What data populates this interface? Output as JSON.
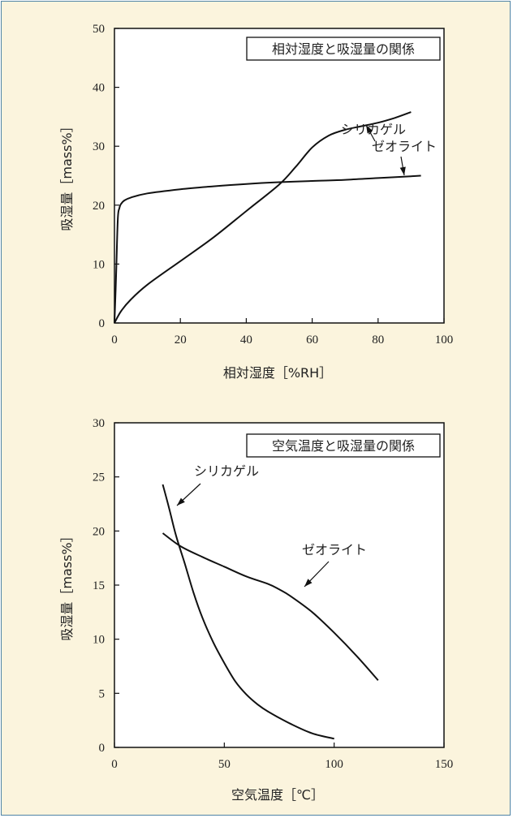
{
  "chart_data": [
    {
      "type": "line",
      "title": "相対湿度と吸湿量の関係",
      "xlabel": "相対湿度［%RH］",
      "ylabel": "吸湿量［mass%］",
      "xlim": [
        0,
        100
      ],
      "ylim": [
        0,
        50
      ],
      "xticks": [
        0,
        20,
        40,
        60,
        80,
        100
      ],
      "yticks": [
        0,
        10,
        20,
        30,
        40,
        50
      ],
      "grid": false,
      "series": [
        {
          "name": "シリカゲル",
          "x": [
            0,
            2,
            5,
            10,
            20,
            30,
            40,
            50,
            55,
            60,
            65,
            70,
            75,
            80,
            85,
            90
          ],
          "y": [
            0,
            2,
            4,
            6.5,
            10.5,
            14.5,
            19,
            23.5,
            26.5,
            29.8,
            31.8,
            32.8,
            33.4,
            34,
            34.8,
            35.8
          ]
        },
        {
          "name": "ゼオライト",
          "x": [
            0,
            0.5,
            1,
            1.5,
            2,
            3,
            5,
            10,
            20,
            30,
            40,
            50,
            60,
            70,
            80,
            90,
            93
          ],
          "y": [
            0,
            8,
            17.5,
            19.5,
            20.2,
            20.8,
            21.3,
            22,
            22.7,
            23.2,
            23.6,
            23.9,
            24.1,
            24.3,
            24.6,
            24.9,
            25
          ]
        }
      ],
      "annotations": [
        {
          "text": "シリカゲル",
          "series": "シリカゲル"
        },
        {
          "text": "ゼオライト",
          "series": "ゼオライト"
        }
      ]
    },
    {
      "type": "line",
      "title": "空気温度と吸湿量の関係",
      "xlabel": "空気温度［℃］",
      "ylabel": "吸湿量［mass%］",
      "xlim": [
        0,
        150
      ],
      "ylim": [
        0,
        30
      ],
      "xticks": [
        0,
        50,
        100,
        150
      ],
      "yticks": [
        0,
        5,
        10,
        15,
        20,
        25,
        30
      ],
      "grid": false,
      "series": [
        {
          "name": "シリカゲル",
          "x": [
            22,
            25,
            28,
            32,
            36,
            40,
            45,
            50,
            55,
            60,
            65,
            70,
            80,
            90,
            100
          ],
          "y": [
            24.3,
            22,
            19.6,
            17,
            14.3,
            12,
            9.7,
            7.8,
            6.1,
            4.9,
            4.0,
            3.3,
            2.2,
            1.3,
            0.8
          ]
        },
        {
          "name": "ゼオライト",
          "x": [
            22,
            30,
            40,
            50,
            60,
            70,
            75,
            80,
            90,
            100,
            110,
            120
          ],
          "y": [
            19.8,
            18.6,
            17.6,
            16.7,
            15.8,
            15.1,
            14.6,
            14.0,
            12.5,
            10.6,
            8.5,
            6.2
          ]
        }
      ],
      "annotations": [
        {
          "text": "シリカゲル",
          "series": "シリカゲル"
        },
        {
          "text": "ゼオライト",
          "series": "ゼオライト"
        }
      ]
    }
  ]
}
